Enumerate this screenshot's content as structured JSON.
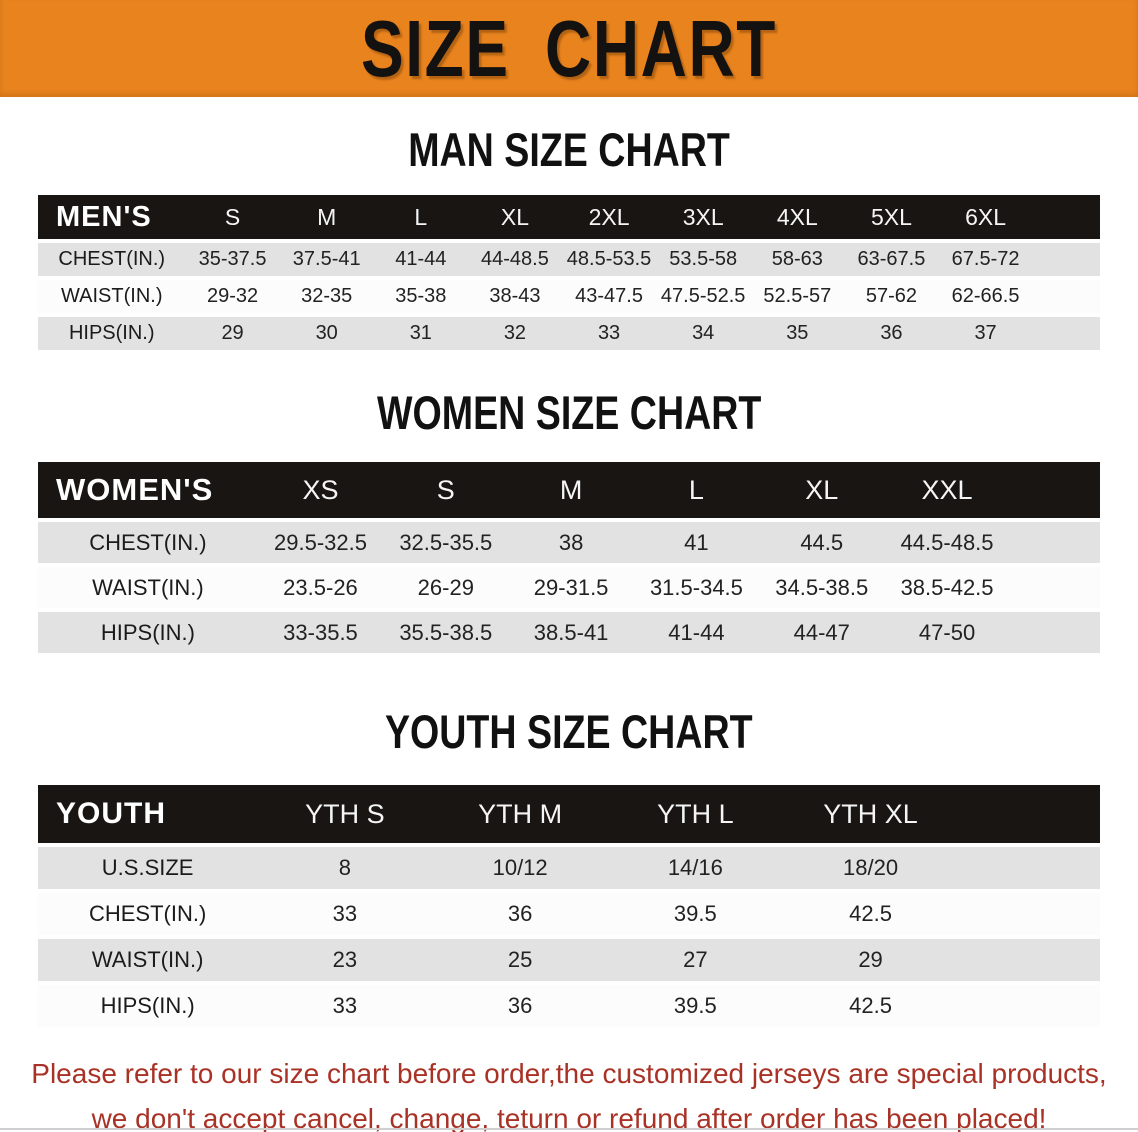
{
  "banner": {
    "title": "SIZE CHART"
  },
  "sections": [
    {
      "heading": "MAN SIZE CHART",
      "table": {
        "header_label": "MEN'S",
        "columns": [
          "S",
          "M",
          "L",
          "XL",
          "2XL",
          "3XL",
          "4XL",
          "5XL",
          "6XL"
        ],
        "rows": [
          {
            "label": "CHEST(IN.)",
            "values": [
              "35-37.5",
              "37.5-41",
              "41-44",
              "44-48.5",
              "48.5-53.5",
              "53.5-58",
              "58-63",
              "63-67.5",
              "67.5-72"
            ]
          },
          {
            "label": "WAIST(IN.)",
            "values": [
              "29-32",
              "32-35",
              "35-38",
              "38-43",
              "43-47.5",
              "47.5-52.5",
              "52.5-57",
              "57-62",
              "62-66.5"
            ]
          },
          {
            "label": "HIPS(IN.)",
            "values": [
              "29",
              "30",
              "31",
              "32",
              "33",
              "34",
              "35",
              "36",
              "37"
            ]
          }
        ]
      }
    },
    {
      "heading": "WOMEN SIZE CHART",
      "table": {
        "header_label": "WOMEN'S",
        "columns": [
          "XS",
          "S",
          "M",
          "L",
          "XL",
          "XXL"
        ],
        "rows": [
          {
            "label": "CHEST(IN.)",
            "values": [
              "29.5-32.5",
              "32.5-35.5",
              "38",
              "41",
              "44.5",
              "44.5-48.5"
            ]
          },
          {
            "label": "WAIST(IN.)",
            "values": [
              "23.5-26",
              "26-29",
              "29-31.5",
              "31.5-34.5",
              "34.5-38.5",
              "38.5-42.5"
            ]
          },
          {
            "label": "HIPS(IN.)",
            "values": [
              "33-35.5",
              "35.5-38.5",
              "38.5-41",
              "41-44",
              "44-47",
              "47-50"
            ]
          }
        ]
      }
    },
    {
      "heading": "YOUTH SIZE CHART",
      "table": {
        "header_label": "YOUTH",
        "columns": [
          "YTH S",
          "YTH M",
          "YTH L",
          "YTH XL"
        ],
        "rows": [
          {
            "label": "U.S.SIZE",
            "values": [
              "8",
              "10/12",
              "14/16",
              "18/20"
            ]
          },
          {
            "label": "CHEST(IN.)",
            "values": [
              "33",
              "36",
              "39.5",
              "42.5"
            ]
          },
          {
            "label": "WAIST(IN.)",
            "values": [
              "23",
              "25",
              "27",
              "29"
            ]
          },
          {
            "label": "HIPS(IN.)",
            "values": [
              "33",
              "36",
              "39.5",
              "42.5"
            ]
          }
        ]
      }
    }
  ],
  "disclaimer": {
    "line1": "Please refer to our size chart before order,the customized jerseys are special products,",
    "line2": "we don't accept cancel, change, teturn or refund after order has been placed!"
  },
  "colors": {
    "banner_bg": "#E8831E",
    "header_bar": "#181512",
    "row_shade": "#E2E2E2",
    "row_plain": "#FCFCFC",
    "disclaimer_text": "#A93226"
  }
}
